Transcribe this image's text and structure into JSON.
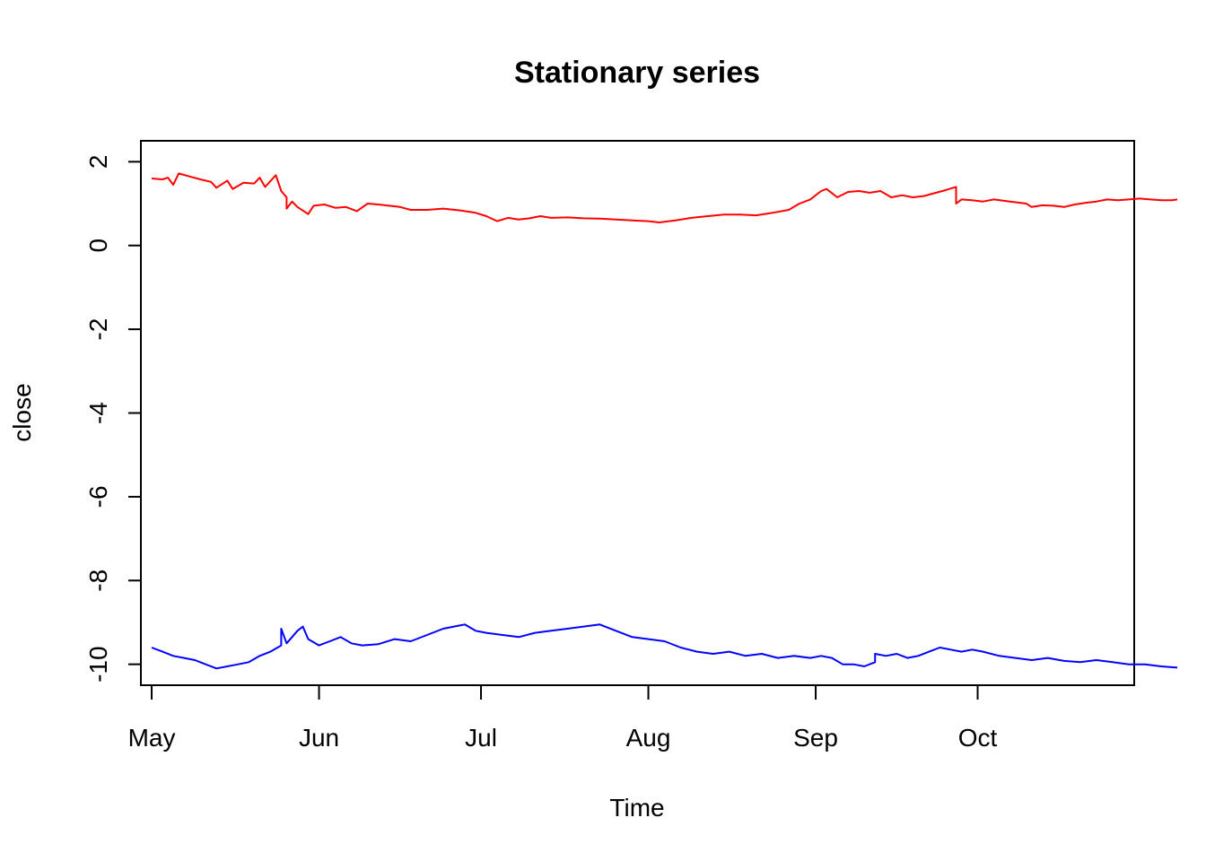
{
  "chart_data": {
    "type": "line",
    "title": "Stationary series",
    "xlabel": "Time",
    "ylabel": "close",
    "x_tick_labels": [
      "May",
      "Jun",
      "Jul",
      "Aug",
      "Sep",
      "Oct"
    ],
    "x_tick_dates": [
      "2017-05-01",
      "2017-06-01",
      "2017-07-01",
      "2017-08-01",
      "2017-09-01",
      "2017-10-01"
    ],
    "xlim": [
      "2017-04-29",
      "2017-10-30"
    ],
    "y_ticks": [
      -10,
      -8,
      -6,
      -4,
      -2,
      0,
      2
    ],
    "ylim": [
      -10.5,
      2.5
    ],
    "grid": false,
    "series": [
      {
        "color": "#ff0000",
        "points": [
          [
            "2017-05-01",
            1.6
          ],
          [
            "2017-05-03",
            1.58
          ],
          [
            "2017-05-04",
            1.62
          ],
          [
            "2017-05-05",
            1.45
          ],
          [
            "2017-05-06",
            1.72
          ],
          [
            "2017-05-08",
            1.65
          ],
          [
            "2017-05-10",
            1.58
          ],
          [
            "2017-05-12",
            1.52
          ],
          [
            "2017-05-13",
            1.38
          ],
          [
            "2017-05-15",
            1.55
          ],
          [
            "2017-05-16",
            1.35
          ],
          [
            "2017-05-18",
            1.5
          ],
          [
            "2017-05-20",
            1.48
          ],
          [
            "2017-05-21",
            1.62
          ],
          [
            "2017-05-22",
            1.4
          ],
          [
            "2017-05-24",
            1.68
          ],
          [
            "2017-05-25",
            1.3
          ],
          [
            "2017-05-26",
            1.15
          ],
          [
            "2017-05-26",
            0.88
          ],
          [
            "2017-05-27",
            1.05
          ],
          [
            "2017-05-28",
            0.92
          ],
          [
            "2017-05-30",
            0.75
          ],
          [
            "2017-05-31",
            0.95
          ],
          [
            "2017-06-02",
            0.98
          ],
          [
            "2017-06-04",
            0.9
          ],
          [
            "2017-06-06",
            0.92
          ],
          [
            "2017-06-08",
            0.82
          ],
          [
            "2017-06-10",
            1.0
          ],
          [
            "2017-06-12",
            0.98
          ],
          [
            "2017-06-14",
            0.95
          ],
          [
            "2017-06-16",
            0.92
          ],
          [
            "2017-06-18",
            0.85
          ],
          [
            "2017-06-21",
            0.85
          ],
          [
            "2017-06-24",
            0.88
          ],
          [
            "2017-06-27",
            0.84
          ],
          [
            "2017-06-30",
            0.78
          ],
          [
            "2017-07-02",
            0.7
          ],
          [
            "2017-07-04",
            0.58
          ],
          [
            "2017-07-06",
            0.66
          ],
          [
            "2017-07-08",
            0.62
          ],
          [
            "2017-07-10",
            0.65
          ],
          [
            "2017-07-12",
            0.7
          ],
          [
            "2017-07-14",
            0.66
          ],
          [
            "2017-07-17",
            0.67
          ],
          [
            "2017-07-20",
            0.65
          ],
          [
            "2017-07-23",
            0.64
          ],
          [
            "2017-07-26",
            0.62
          ],
          [
            "2017-07-29",
            0.6
          ],
          [
            "2017-08-01",
            0.58
          ],
          [
            "2017-08-03",
            0.55
          ],
          [
            "2017-08-06",
            0.6
          ],
          [
            "2017-08-09",
            0.66
          ],
          [
            "2017-08-12",
            0.7
          ],
          [
            "2017-08-15",
            0.74
          ],
          [
            "2017-08-18",
            0.74
          ],
          [
            "2017-08-21",
            0.72
          ],
          [
            "2017-08-24",
            0.78
          ],
          [
            "2017-08-27",
            0.85
          ],
          [
            "2017-08-29",
            1.0
          ],
          [
            "2017-08-31",
            1.1
          ],
          [
            "2017-09-02",
            1.3
          ],
          [
            "2017-09-03",
            1.35
          ],
          [
            "2017-09-05",
            1.15
          ],
          [
            "2017-09-07",
            1.28
          ],
          [
            "2017-09-09",
            1.3
          ],
          [
            "2017-09-11",
            1.26
          ],
          [
            "2017-09-13",
            1.3
          ],
          [
            "2017-09-15",
            1.15
          ],
          [
            "2017-09-17",
            1.2
          ],
          [
            "2017-09-19",
            1.15
          ],
          [
            "2017-09-21",
            1.18
          ],
          [
            "2017-09-23",
            1.25
          ],
          [
            "2017-09-25",
            1.32
          ],
          [
            "2017-09-27",
            1.4
          ],
          [
            "2017-09-27",
            1.0
          ],
          [
            "2017-09-28",
            1.1
          ],
          [
            "2017-09-30",
            1.08
          ],
          [
            "2017-10-02",
            1.05
          ],
          [
            "2017-10-04",
            1.1
          ],
          [
            "2017-10-07",
            1.05
          ],
          [
            "2017-10-10",
            1.0
          ],
          [
            "2017-10-11",
            0.92
          ],
          [
            "2017-10-13",
            0.96
          ],
          [
            "2017-10-15",
            0.95
          ],
          [
            "2017-10-17",
            0.92
          ],
          [
            "2017-10-19",
            0.98
          ],
          [
            "2017-10-21",
            1.02
          ],
          [
            "2017-10-23",
            1.05
          ],
          [
            "2017-10-25",
            1.1
          ],
          [
            "2017-10-27",
            1.08
          ],
          [
            "2017-10-29",
            1.1
          ],
          [
            "2017-10-31",
            1.12
          ],
          [
            "2017-11-02",
            1.1
          ],
          [
            "2017-11-04",
            1.08
          ],
          [
            "2017-11-06",
            1.08
          ],
          [
            "2017-11-07",
            1.1
          ]
        ]
      },
      {
        "color": "#0000ff",
        "points": [
          [
            "2017-05-01",
            -9.6
          ],
          [
            "2017-05-03",
            -9.7
          ],
          [
            "2017-05-05",
            -9.8
          ],
          [
            "2017-05-07",
            -9.85
          ],
          [
            "2017-05-09",
            -9.9
          ],
          [
            "2017-05-11",
            -10.0
          ],
          [
            "2017-05-13",
            -10.1
          ],
          [
            "2017-05-15",
            -10.05
          ],
          [
            "2017-05-17",
            -10.0
          ],
          [
            "2017-05-19",
            -9.95
          ],
          [
            "2017-05-21",
            -9.8
          ],
          [
            "2017-05-23",
            -9.7
          ],
          [
            "2017-05-25",
            -9.55
          ],
          [
            "2017-05-25",
            -9.15
          ],
          [
            "2017-05-26",
            -9.5
          ],
          [
            "2017-05-27",
            -9.35
          ],
          [
            "2017-05-28",
            -9.2
          ],
          [
            "2017-05-29",
            -9.1
          ],
          [
            "2017-05-30",
            -9.4
          ],
          [
            "2017-06-01",
            -9.55
          ],
          [
            "2017-06-03",
            -9.45
          ],
          [
            "2017-06-05",
            -9.35
          ],
          [
            "2017-06-07",
            -9.5
          ],
          [
            "2017-06-09",
            -9.55
          ],
          [
            "2017-06-12",
            -9.52
          ],
          [
            "2017-06-15",
            -9.4
          ],
          [
            "2017-06-18",
            -9.45
          ],
          [
            "2017-06-21",
            -9.3
          ],
          [
            "2017-06-24",
            -9.15
          ],
          [
            "2017-06-26",
            -9.1
          ],
          [
            "2017-06-28",
            -9.05
          ],
          [
            "2017-06-30",
            -9.2
          ],
          [
            "2017-07-02",
            -9.25
          ],
          [
            "2017-07-05",
            -9.3
          ],
          [
            "2017-07-08",
            -9.35
          ],
          [
            "2017-07-11",
            -9.25
          ],
          [
            "2017-07-14",
            -9.2
          ],
          [
            "2017-07-17",
            -9.15
          ],
          [
            "2017-07-20",
            -9.1
          ],
          [
            "2017-07-23",
            -9.05
          ],
          [
            "2017-07-26",
            -9.2
          ],
          [
            "2017-07-29",
            -9.35
          ],
          [
            "2017-08-01",
            -9.4
          ],
          [
            "2017-08-04",
            -9.45
          ],
          [
            "2017-08-07",
            -9.6
          ],
          [
            "2017-08-10",
            -9.7
          ],
          [
            "2017-08-13",
            -9.75
          ],
          [
            "2017-08-16",
            -9.7
          ],
          [
            "2017-08-19",
            -9.8
          ],
          [
            "2017-08-22",
            -9.75
          ],
          [
            "2017-08-25",
            -9.85
          ],
          [
            "2017-08-28",
            -9.8
          ],
          [
            "2017-08-31",
            -9.85
          ],
          [
            "2017-09-02",
            -9.8
          ],
          [
            "2017-09-04",
            -9.85
          ],
          [
            "2017-09-06",
            -10.0
          ],
          [
            "2017-09-08",
            -10.0
          ],
          [
            "2017-09-10",
            -10.05
          ],
          [
            "2017-09-12",
            -9.95
          ],
          [
            "2017-09-12",
            -9.75
          ],
          [
            "2017-09-14",
            -9.8
          ],
          [
            "2017-09-16",
            -9.75
          ],
          [
            "2017-09-18",
            -9.85
          ],
          [
            "2017-09-20",
            -9.8
          ],
          [
            "2017-09-22",
            -9.7
          ],
          [
            "2017-09-24",
            -9.6
          ],
          [
            "2017-09-26",
            -9.65
          ],
          [
            "2017-09-28",
            -9.7
          ],
          [
            "2017-09-30",
            -9.65
          ],
          [
            "2017-10-02",
            -9.7
          ],
          [
            "2017-10-05",
            -9.8
          ],
          [
            "2017-10-08",
            -9.85
          ],
          [
            "2017-10-11",
            -9.9
          ],
          [
            "2017-10-14",
            -9.85
          ],
          [
            "2017-10-17",
            -9.92
          ],
          [
            "2017-10-20",
            -9.95
          ],
          [
            "2017-10-23",
            -9.9
          ],
          [
            "2017-10-26",
            -9.95
          ],
          [
            "2017-10-29",
            -10.0
          ],
          [
            "2017-11-01",
            -10.0
          ],
          [
            "2017-11-04",
            -10.05
          ],
          [
            "2017-11-07",
            -10.08
          ]
        ]
      }
    ]
  }
}
